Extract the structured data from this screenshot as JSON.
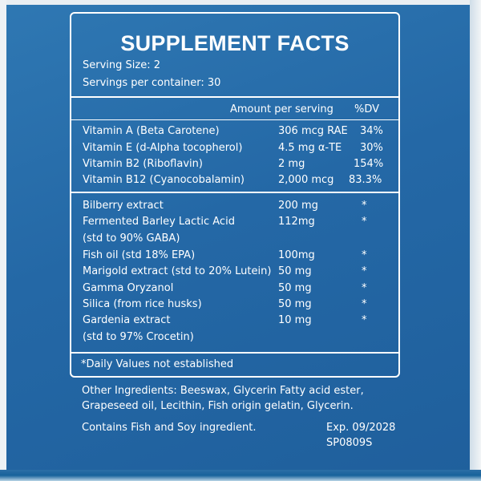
{
  "panel": {
    "title": "SUPPLEMENT FACTS",
    "serving_size": "Serving  Size: 2",
    "servings_per_container": "Servings per container: 30",
    "header_amount": "Amount per serving",
    "header_dv": "%DV",
    "vitamins": [
      {
        "name": "Vitamin A (Beta Carotene)",
        "amount": "306 mcg RAE",
        "dv": "34%"
      },
      {
        "name": "Vitamin E (d-Alpha tocopherol)",
        "amount": "4.5 mg α-TE",
        "dv": "30%"
      },
      {
        "name": "Vitamin B2 (Riboflavin)",
        "amount": "2 mg",
        "dv": "154%"
      },
      {
        "name": "Vitamin B12 (Cyanocobalamin)",
        "amount": "2,000 mcg",
        "dv": "83.3%"
      }
    ],
    "others": [
      {
        "name": "Bilberry extract",
        "amount": "200 mg",
        "dv": "*"
      },
      {
        "name": "Fermented Barley Lactic Acid",
        "amount": "112mg",
        "dv": "*"
      },
      {
        "name": "(std to 90% GABA)",
        "amount": "",
        "dv": ""
      },
      {
        "name": "Fish oil (std 18% EPA)",
        "amount": "100mg",
        "dv": "*"
      },
      {
        "name": "Marigold extract (std to 20% Lutein)",
        "amount": "50 mg",
        "dv": "*"
      },
      {
        "name": "Gamma Oryzanol",
        "amount": "50 mg",
        "dv": "*"
      },
      {
        "name": "Silica (from rice husks)",
        "amount": "50 mg",
        "dv": "*"
      },
      {
        "name": "Gardenia extract",
        "amount": "10 mg",
        "dv": "*"
      },
      {
        "name": "(std to 97% Crocetin)",
        "amount": "",
        "dv": ""
      }
    ],
    "footnote": "*Daily Values not established"
  },
  "bottom": {
    "other_ingredients_line1": "Other Ingredients: Beeswax, Glycerin Fatty acid ester,",
    "other_ingredients_line2": "Grapeseed oil, Lecithin, Fish origin gelatin, Glycerin.",
    "allergen": "Contains Fish and Soy ingredient.",
    "expiry": "Exp. 09/2028",
    "lot": "SP0809S"
  },
  "colors": {
    "background_blue": "#2468a6",
    "text": "#ffffff"
  }
}
